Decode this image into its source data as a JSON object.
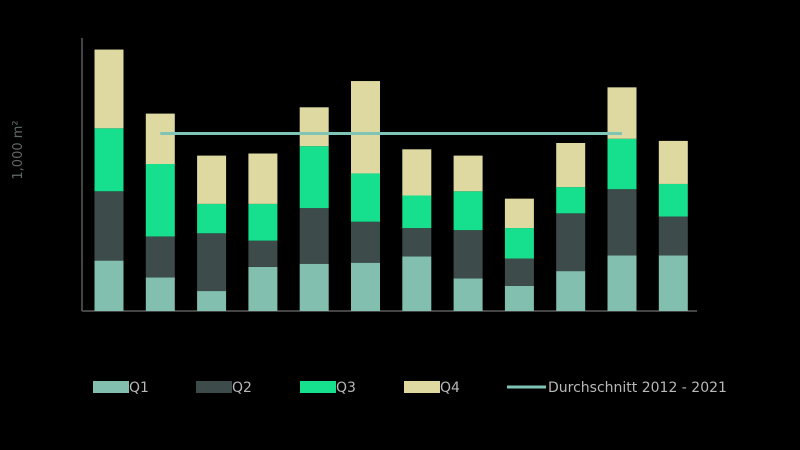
{
  "chart_data": {
    "type": "bar",
    "stacked": true,
    "title": "",
    "xlabel": "",
    "ylabel": "1,000 m²",
    "ylim": [
      0,
      260
    ],
    "grid": false,
    "legend_position": "bottom",
    "categories": [
      "",
      "",
      "",
      "",
      "",
      "",
      "",
      "",
      "",
      "",
      "",
      ""
    ],
    "series": [
      {
        "name": "Q1",
        "color": "#82bfae",
        "values": [
          48,
          32,
          19,
          42,
          45,
          46,
          52,
          31,
          24,
          38,
          53,
          53
        ]
      },
      {
        "name": "Q2",
        "color": "#3e4b4b",
        "values": [
          66,
          39,
          55,
          25,
          53,
          39,
          27,
          46,
          26,
          55,
          63,
          37
        ]
      },
      {
        "name": "Q3",
        "color": "#16e08e",
        "values": [
          60,
          69,
          28,
          35,
          59,
          46,
          31,
          37,
          29,
          25,
          48,
          31
        ]
      },
      {
        "name": "Q4",
        "color": "#ddd9a0",
        "values": [
          75,
          48,
          46,
          48,
          37,
          88,
          44,
          34,
          28,
          42,
          49,
          41
        ]
      }
    ],
    "average_line": {
      "name": "Durchschnitt 2012 - 2021",
      "color": "#7fc4b4",
      "value": 169,
      "from_index": 1,
      "to_index": 10
    }
  }
}
